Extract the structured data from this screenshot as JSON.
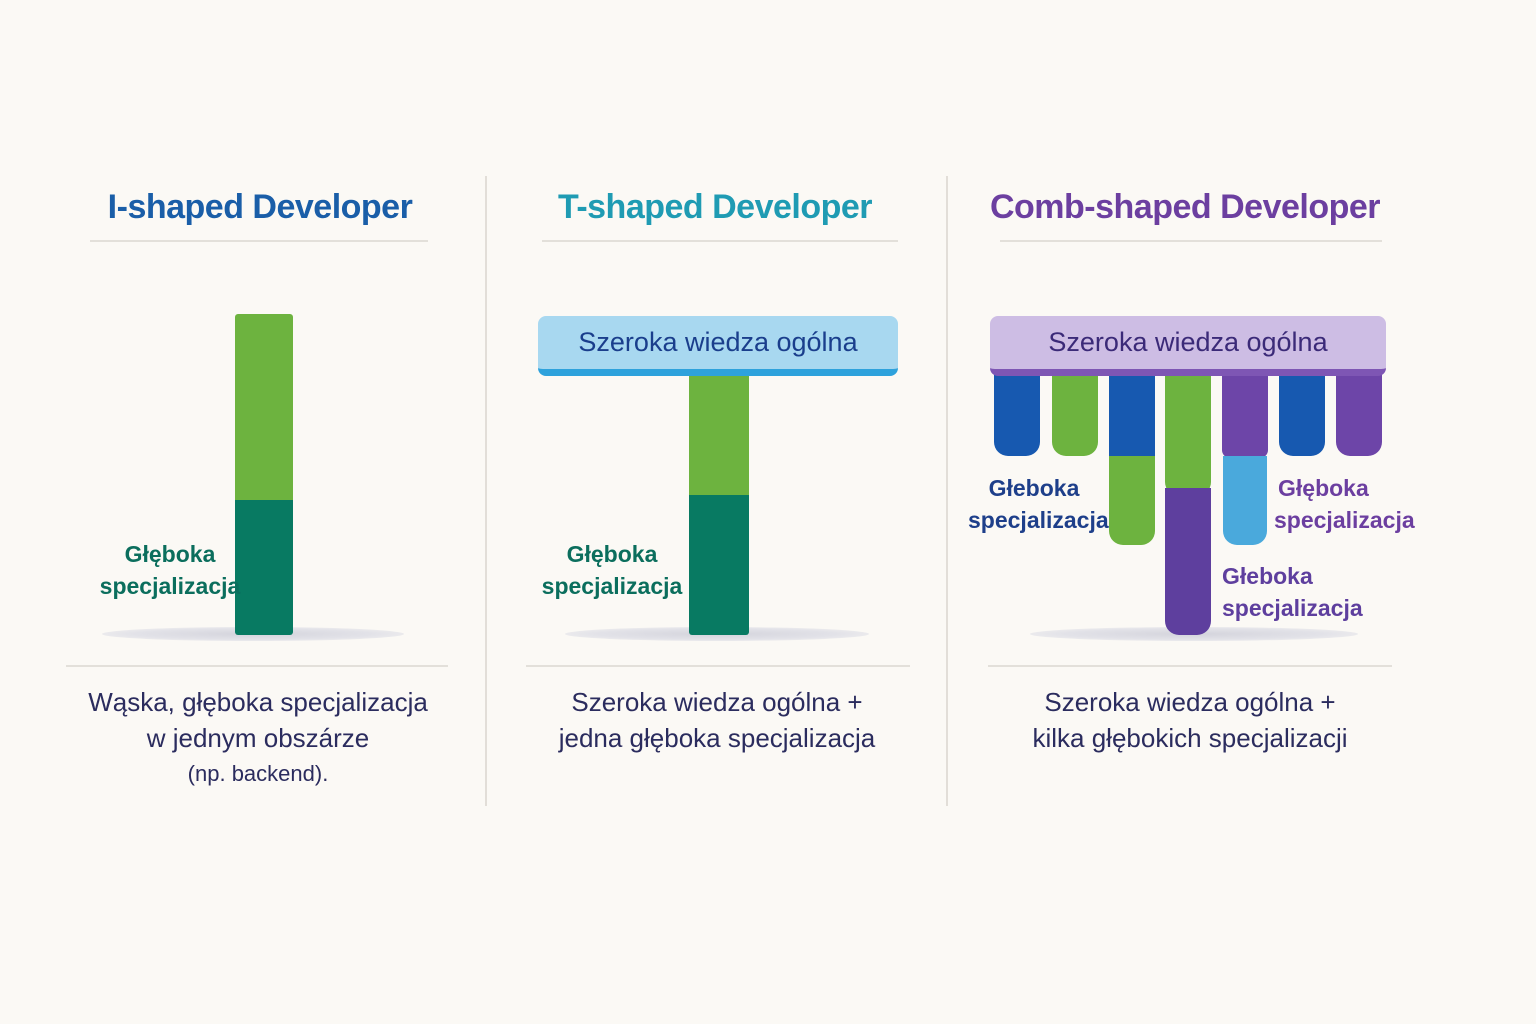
{
  "colors": {
    "blue_title": "#1a5ea8",
    "teal_title": "#1f9bb3",
    "purple_title": "#6c3fa0",
    "light_green": "#6db33f",
    "dark_green": "#087a62",
    "blue_bar": "#1759b0",
    "light_blue": "#4aa9dc",
    "purple_bar": "#6d45a8",
    "indigo": "#5e3f9e"
  },
  "i_shaped": {
    "title": "I-shaped Developer",
    "bar_label_line1": "Głęboka",
    "bar_label_line2": "specjalizacja",
    "desc_line1": "Wąska, głęboka specjalizacja",
    "desc_line2": "w jednym obszárze",
    "desc_line3": "(np. backend)."
  },
  "t_shaped": {
    "title": "T-shaped Developer",
    "top_label": "Szeroka wiedza ogólna",
    "bar_label_line1": "Głęboka",
    "bar_label_line2": "specjalizacja",
    "desc_line1": "Szeroka wiedza ogólna +",
    "desc_line2": "jedna głęboka specjalizacja"
  },
  "comb_shaped": {
    "title": "Comb-shaped Developer",
    "top_label": "Szeroka wiedza ogólna",
    "label_left_line1": "Głeboka",
    "label_left_line2": "specjalizacja",
    "label_right_line1": "Głęboka",
    "label_right_line2": "specjalizacja",
    "label_center_line1": "Głeboka",
    "label_center_line2": "specjalizacja",
    "desc_line1": "Szeroka wiedza ogólna +",
    "desc_line2": "kilka głębokich specjalizacji"
  }
}
